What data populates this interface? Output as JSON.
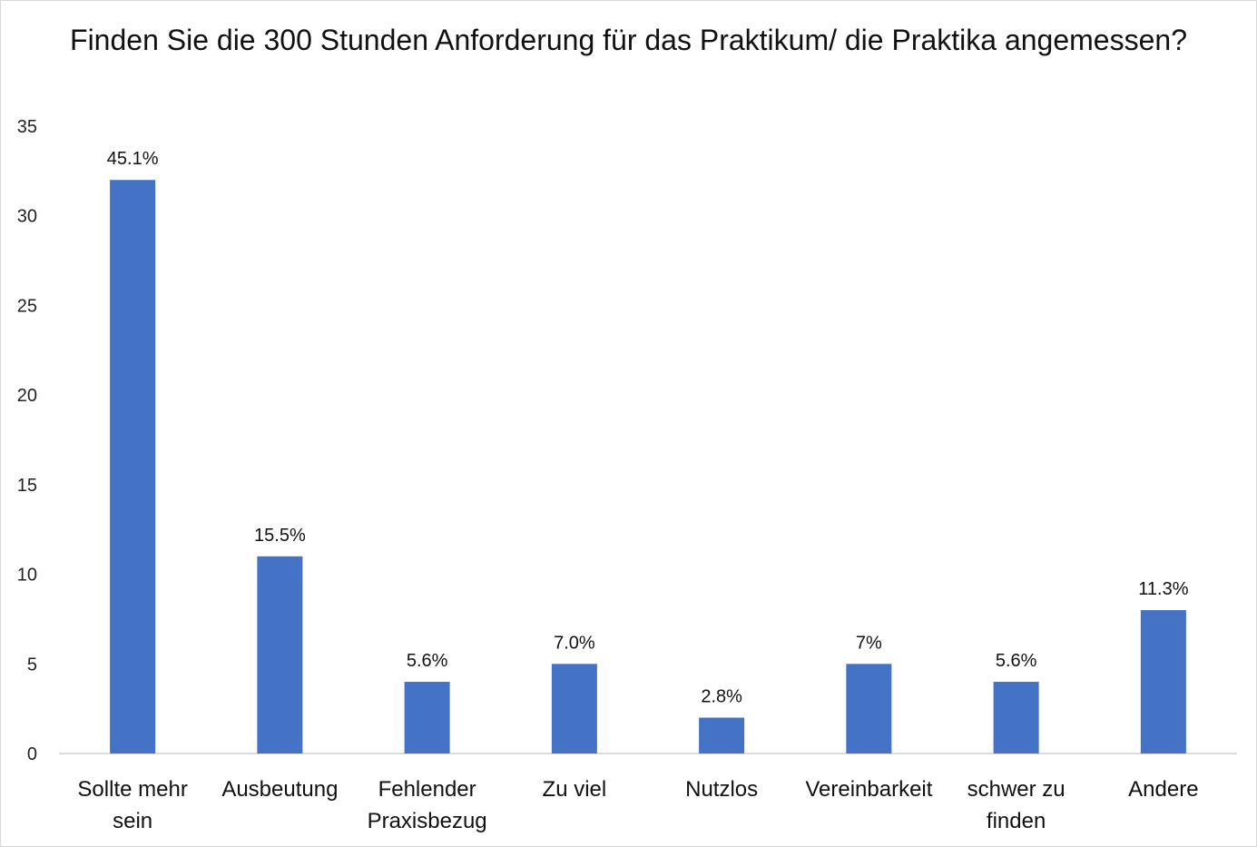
{
  "chart_data": {
    "type": "bar",
    "title": "Finden Sie die 300 Stunden Anforderung für das Praktikum/ die Praktika angemessen?",
    "xlabel": "",
    "ylabel": "",
    "ylim": [
      0,
      35
    ],
    "yticks": [
      0,
      5,
      10,
      15,
      20,
      25,
      30,
      35
    ],
    "grid": false,
    "legend": "none",
    "bar_color": "#4472C4",
    "categories": [
      [
        "Sollte mehr",
        "sein"
      ],
      [
        "Ausbeutung"
      ],
      [
        "Fehlender",
        "Praxisbezug"
      ],
      [
        "Zu viel"
      ],
      [
        "Nutzlos"
      ],
      [
        "Vereinbarkeit"
      ],
      [
        "schwer zu",
        "finden"
      ],
      [
        "Andere"
      ]
    ],
    "values": [
      32,
      11,
      4,
      5,
      2,
      5,
      4,
      8
    ],
    "data_labels": [
      "45.1%",
      "15.5%",
      "5.6%",
      "7.0%",
      "2.8%",
      "7%",
      "5.6%",
      "11.3%"
    ]
  }
}
